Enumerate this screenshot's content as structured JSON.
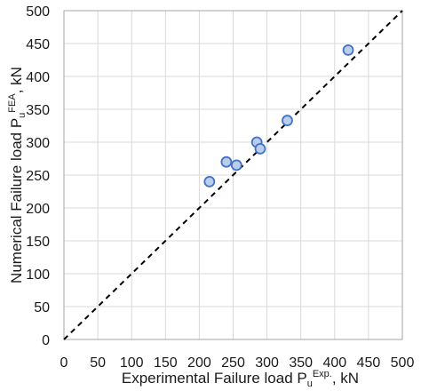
{
  "chart_data": {
    "type": "scatter",
    "xlabel": {
      "main": "Experimental Failure load P",
      "sub": "u",
      "sup": "Exp.",
      "unit": ", kN"
    },
    "ylabel": {
      "main": "Numerical Failure load P",
      "sub": "u",
      "sup": "FEA",
      "unit": ", kN"
    },
    "xlim": [
      0,
      500
    ],
    "ylim": [
      0,
      500
    ],
    "xticks": [
      "0",
      "50",
      "100",
      "150",
      "200",
      "250",
      "300",
      "350",
      "400",
      "450",
      "500"
    ],
    "yticks": [
      "0",
      "50",
      "100",
      "150",
      "200",
      "250",
      "300",
      "350",
      "400",
      "450",
      "500"
    ],
    "grid": true,
    "reference_line": {
      "style": "dashed",
      "from": [
        0,
        0
      ],
      "to": [
        500,
        500
      ]
    },
    "points": [
      {
        "x": 215,
        "y": 240
      },
      {
        "x": 240,
        "y": 270
      },
      {
        "x": 255,
        "y": 265
      },
      {
        "x": 285,
        "y": 300
      },
      {
        "x": 290,
        "y": 290
      },
      {
        "x": 330,
        "y": 333
      },
      {
        "x": 420,
        "y": 440
      }
    ],
    "colors": {
      "marker_fill": "#b9cdec",
      "marker_stroke": "#4472c4",
      "grid": "#d9d9d9",
      "reference": "#000000"
    }
  }
}
